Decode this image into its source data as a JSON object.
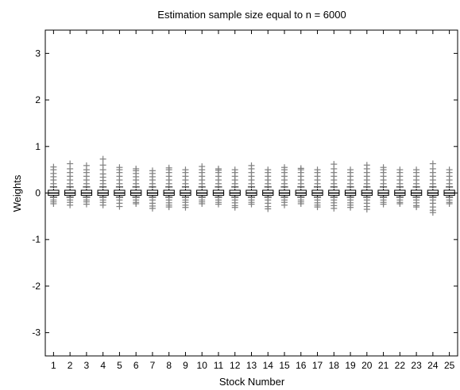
{
  "chart_data": {
    "type": "box",
    "title": "Estimation sample size equal to n = 6000",
    "xlabel": "Stock Number",
    "ylabel": "Weights",
    "ylim": [
      -3.5,
      3.5
    ],
    "y_ticks": [
      3,
      2,
      1,
      0,
      -1,
      -2,
      -3
    ],
    "categories": [
      "1",
      "2",
      "3",
      "4",
      "5",
      "6",
      "7",
      "8",
      "9",
      "10",
      "11",
      "12",
      "13",
      "14",
      "15",
      "16",
      "17",
      "18",
      "19",
      "20",
      "21",
      "22",
      "23",
      "24",
      "25"
    ],
    "series": [
      {
        "values": [
          {
            "whisker_low": -0.09,
            "q1": -0.05,
            "median": 0.0,
            "q3": 0.06,
            "whisker_high": 0.13,
            "outliers_high": [
              0.2,
              0.28,
              0.35,
              0.42,
              0.5,
              0.56
            ],
            "outliers_low": [
              -0.15,
              -0.19,
              -0.23
            ]
          },
          {
            "whisker_low": -0.09,
            "q1": -0.05,
            "median": 0.0,
            "q3": 0.06,
            "whisker_high": 0.13,
            "outliers_high": [
              0.2,
              0.28,
              0.36,
              0.44,
              0.52,
              0.63
            ],
            "outliers_low": [
              -0.15,
              -0.2,
              -0.26
            ]
          },
          {
            "whisker_low": -0.09,
            "q1": -0.05,
            "median": 0.0,
            "q3": 0.06,
            "whisker_high": 0.13,
            "outliers_high": [
              0.2,
              0.28,
              0.36,
              0.44,
              0.5,
              0.59
            ],
            "outliers_low": [
              -0.15,
              -0.19,
              -0.24
            ]
          },
          {
            "whisker_low": -0.09,
            "q1": -0.05,
            "median": 0.0,
            "q3": 0.06,
            "whisker_high": 0.13,
            "outliers_high": [
              0.2,
              0.27,
              0.34,
              0.41,
              0.5,
              0.6,
              0.73
            ],
            "outliers_low": [
              -0.15,
              -0.2,
              -0.26
            ]
          },
          {
            "whisker_low": -0.09,
            "q1": -0.05,
            "median": 0.0,
            "q3": 0.06,
            "whisker_high": 0.13,
            "outliers_high": [
              0.2,
              0.28,
              0.36,
              0.44,
              0.5,
              0.55
            ],
            "outliers_low": [
              -0.15,
              -0.22,
              -0.29
            ]
          },
          {
            "whisker_low": -0.09,
            "q1": -0.05,
            "median": 0.0,
            "q3": 0.06,
            "whisker_high": 0.13,
            "outliers_high": [
              0.2,
              0.28,
              0.35,
              0.42,
              0.48,
              0.52
            ],
            "outliers_low": [
              -0.15,
              -0.2,
              -0.23
            ]
          },
          {
            "whisker_low": -0.09,
            "q1": -0.05,
            "median": 0.0,
            "q3": 0.06,
            "whisker_high": 0.13,
            "outliers_high": [
              0.2,
              0.28,
              0.35,
              0.42,
              0.48
            ],
            "outliers_low": [
              -0.15,
              -0.22,
              -0.28,
              -0.33
            ]
          },
          {
            "whisker_low": -0.09,
            "q1": -0.05,
            "median": 0.0,
            "q3": 0.06,
            "whisker_high": 0.13,
            "outliers_high": [
              0.2,
              0.28,
              0.36,
              0.44,
              0.5,
              0.54
            ],
            "outliers_low": [
              -0.15,
              -0.21,
              -0.26,
              -0.3
            ]
          },
          {
            "whisker_low": -0.09,
            "q1": -0.05,
            "median": 0.0,
            "q3": 0.06,
            "whisker_high": 0.13,
            "outliers_high": [
              0.2,
              0.28,
              0.36,
              0.44,
              0.5
            ],
            "outliers_low": [
              -0.15,
              -0.2,
              -0.26,
              -0.31
            ]
          },
          {
            "whisker_low": -0.09,
            "q1": -0.05,
            "median": 0.0,
            "q3": 0.06,
            "whisker_high": 0.13,
            "outliers_high": [
              0.2,
              0.28,
              0.36,
              0.44,
              0.5,
              0.57
            ],
            "outliers_low": [
              -0.15,
              -0.19,
              -0.23
            ]
          },
          {
            "whisker_low": -0.09,
            "q1": -0.05,
            "median": 0.0,
            "q3": 0.06,
            "whisker_high": 0.13,
            "outliers_high": [
              0.2,
              0.28,
              0.36,
              0.44,
              0.49,
              0.52
            ],
            "outliers_low": [
              -0.15,
              -0.2,
              -0.24
            ]
          },
          {
            "whisker_low": -0.09,
            "q1": -0.05,
            "median": 0.0,
            "q3": 0.06,
            "whisker_high": 0.13,
            "outliers_high": [
              0.2,
              0.28,
              0.36,
              0.44,
              0.5
            ],
            "outliers_low": [
              -0.15,
              -0.21,
              -0.27,
              -0.31
            ]
          },
          {
            "whisker_low": -0.09,
            "q1": -0.05,
            "median": 0.0,
            "q3": 0.06,
            "whisker_high": 0.13,
            "outliers_high": [
              0.2,
              0.28,
              0.36,
              0.44,
              0.52,
              0.59
            ],
            "outliers_low": [
              -0.15,
              -0.2,
              -0.24
            ]
          },
          {
            "whisker_low": -0.09,
            "q1": -0.05,
            "median": 0.0,
            "q3": 0.06,
            "whisker_high": 0.13,
            "outliers_high": [
              0.2,
              0.28,
              0.36,
              0.44,
              0.5
            ],
            "outliers_low": [
              -0.15,
              -0.22,
              -0.29,
              -0.34
            ]
          },
          {
            "whisker_low": -0.09,
            "q1": -0.05,
            "median": 0.0,
            "q3": 0.06,
            "whisker_high": 0.13,
            "outliers_high": [
              0.2,
              0.28,
              0.36,
              0.44,
              0.5,
              0.55
            ],
            "outliers_low": [
              -0.15,
              -0.2,
              -0.26
            ]
          },
          {
            "whisker_low": -0.09,
            "q1": -0.05,
            "median": 0.0,
            "q3": 0.06,
            "whisker_high": 0.13,
            "outliers_high": [
              0.2,
              0.28,
              0.36,
              0.44,
              0.5,
              0.53
            ],
            "outliers_low": [
              -0.15,
              -0.19,
              -0.23
            ]
          },
          {
            "whisker_low": -0.09,
            "q1": -0.05,
            "median": 0.0,
            "q3": 0.06,
            "whisker_high": 0.13,
            "outliers_high": [
              0.2,
              0.28,
              0.36,
              0.44,
              0.5
            ],
            "outliers_low": [
              -0.15,
              -0.21,
              -0.26,
              -0.3
            ]
          },
          {
            "whisker_low": -0.09,
            "q1": -0.05,
            "median": 0.0,
            "q3": 0.06,
            "whisker_high": 0.13,
            "outliers_high": [
              0.2,
              0.28,
              0.36,
              0.44,
              0.52,
              0.62
            ],
            "outliers_low": [
              -0.15,
              -0.21,
              -0.27,
              -0.33
            ]
          },
          {
            "whisker_low": -0.09,
            "q1": -0.05,
            "median": 0.0,
            "q3": 0.06,
            "whisker_high": 0.13,
            "outliers_high": [
              0.2,
              0.28,
              0.36,
              0.44,
              0.5
            ],
            "outliers_low": [
              -0.15,
              -0.21,
              -0.26,
              -0.31
            ]
          },
          {
            "whisker_low": -0.09,
            "q1": -0.05,
            "median": 0.0,
            "q3": 0.06,
            "whisker_high": 0.13,
            "outliers_high": [
              0.2,
              0.28,
              0.36,
              0.44,
              0.52,
              0.6
            ],
            "outliers_low": [
              -0.15,
              -0.22,
              -0.29,
              -0.35
            ]
          },
          {
            "whisker_low": -0.09,
            "q1": -0.05,
            "median": 0.0,
            "q3": 0.06,
            "whisker_high": 0.13,
            "outliers_high": [
              0.2,
              0.28,
              0.36,
              0.44,
              0.5,
              0.55
            ],
            "outliers_low": [
              -0.15,
              -0.2,
              -0.24
            ]
          },
          {
            "whisker_low": -0.09,
            "q1": -0.05,
            "median": 0.0,
            "q3": 0.06,
            "whisker_high": 0.13,
            "outliers_high": [
              0.2,
              0.28,
              0.36,
              0.44,
              0.5
            ],
            "outliers_low": [
              -0.15,
              -0.2,
              -0.23
            ]
          },
          {
            "whisker_low": -0.09,
            "q1": -0.05,
            "median": 0.0,
            "q3": 0.06,
            "whisker_high": 0.13,
            "outliers_high": [
              0.2,
              0.28,
              0.36,
              0.44,
              0.5
            ],
            "outliers_low": [
              -0.15,
              -0.21,
              -0.27,
              -0.3
            ]
          },
          {
            "whisker_low": -0.09,
            "q1": -0.05,
            "median": 0.0,
            "q3": 0.06,
            "whisker_high": 0.13,
            "outliers_high": [
              0.2,
              0.28,
              0.36,
              0.44,
              0.52,
              0.63
            ],
            "outliers_low": [
              -0.15,
              -0.22,
              -0.3,
              -0.37,
              -0.42
            ]
          },
          {
            "whisker_low": -0.09,
            "q1": -0.05,
            "median": 0.0,
            "q3": 0.06,
            "whisker_high": 0.13,
            "outliers_high": [
              0.2,
              0.28,
              0.36,
              0.44,
              0.5
            ],
            "outliers_low": [
              -0.15,
              -0.2,
              -0.23
            ]
          }
        ]
      }
    ],
    "grid": false,
    "colors": {
      "box": "#000000",
      "outlier": "#808080",
      "axis": "#000000",
      "background": "#ffffff"
    }
  }
}
